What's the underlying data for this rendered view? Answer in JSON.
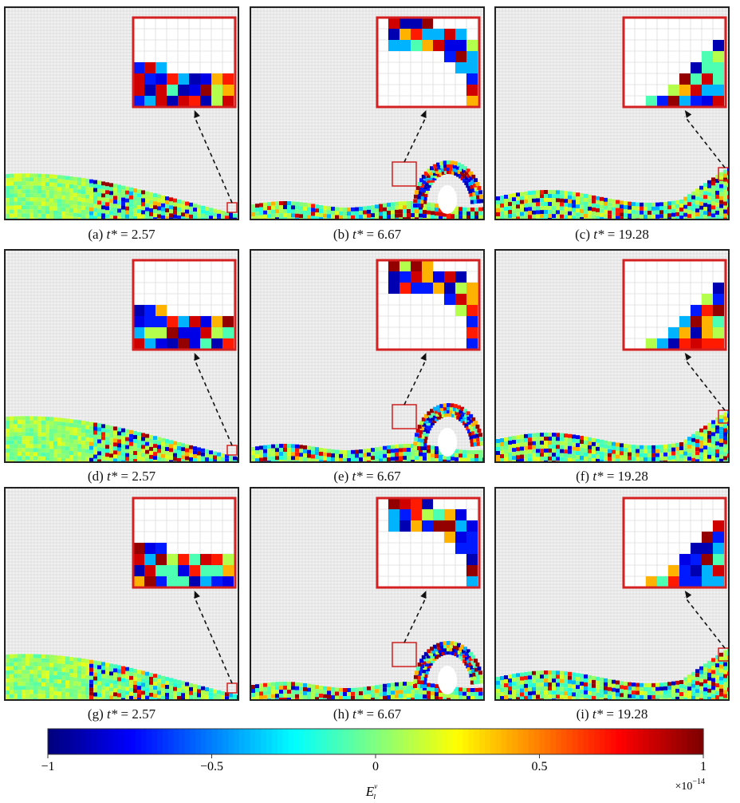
{
  "panels": [
    {
      "id": "a",
      "label": "(a)",
      "t_value": "2.57",
      "stage": "early"
    },
    {
      "id": "b",
      "label": "(b)",
      "t_value": "6.67",
      "stage": "wave"
    },
    {
      "id": "c",
      "label": "(c)",
      "t_value": "19.28",
      "stage": "late"
    },
    {
      "id": "d",
      "label": "(d)",
      "t_value": "2.57",
      "stage": "early"
    },
    {
      "id": "e",
      "label": "(e)",
      "t_value": "6.67",
      "stage": "wave"
    },
    {
      "id": "f",
      "label": "(f)",
      "t_value": "19.28",
      "stage": "late"
    },
    {
      "id": "g",
      "label": "(g)",
      "t_value": "2.57",
      "stage": "early"
    },
    {
      "id": "h",
      "label": "(h)",
      "t_value": "6.67",
      "stage": "wave"
    },
    {
      "id": "i",
      "label": "(i)",
      "t_value": "19.28",
      "stage": "late"
    }
  ],
  "caption_t_symbol": "t*",
  "caption_eq": "=",
  "colors": {
    "frame": "#222222",
    "inset_border": "#d42020",
    "arrow": "#111111",
    "grid": "#cfcfcf"
  },
  "chart_data": {
    "type": "heatmap",
    "colorbar": {
      "colormap": "jet",
      "range": [
        -1,
        1
      ],
      "ticks": [
        -1,
        -0.5,
        0,
        0.5,
        1
      ],
      "tick_labels": [
        "−1",
        "−0.5",
        "0",
        "0.5",
        "1"
      ],
      "multiplier": "×10",
      "multiplier_exp": "−14",
      "label_base": "E",
      "label_sub": "l",
      "label_sup": "v"
    }
  }
}
